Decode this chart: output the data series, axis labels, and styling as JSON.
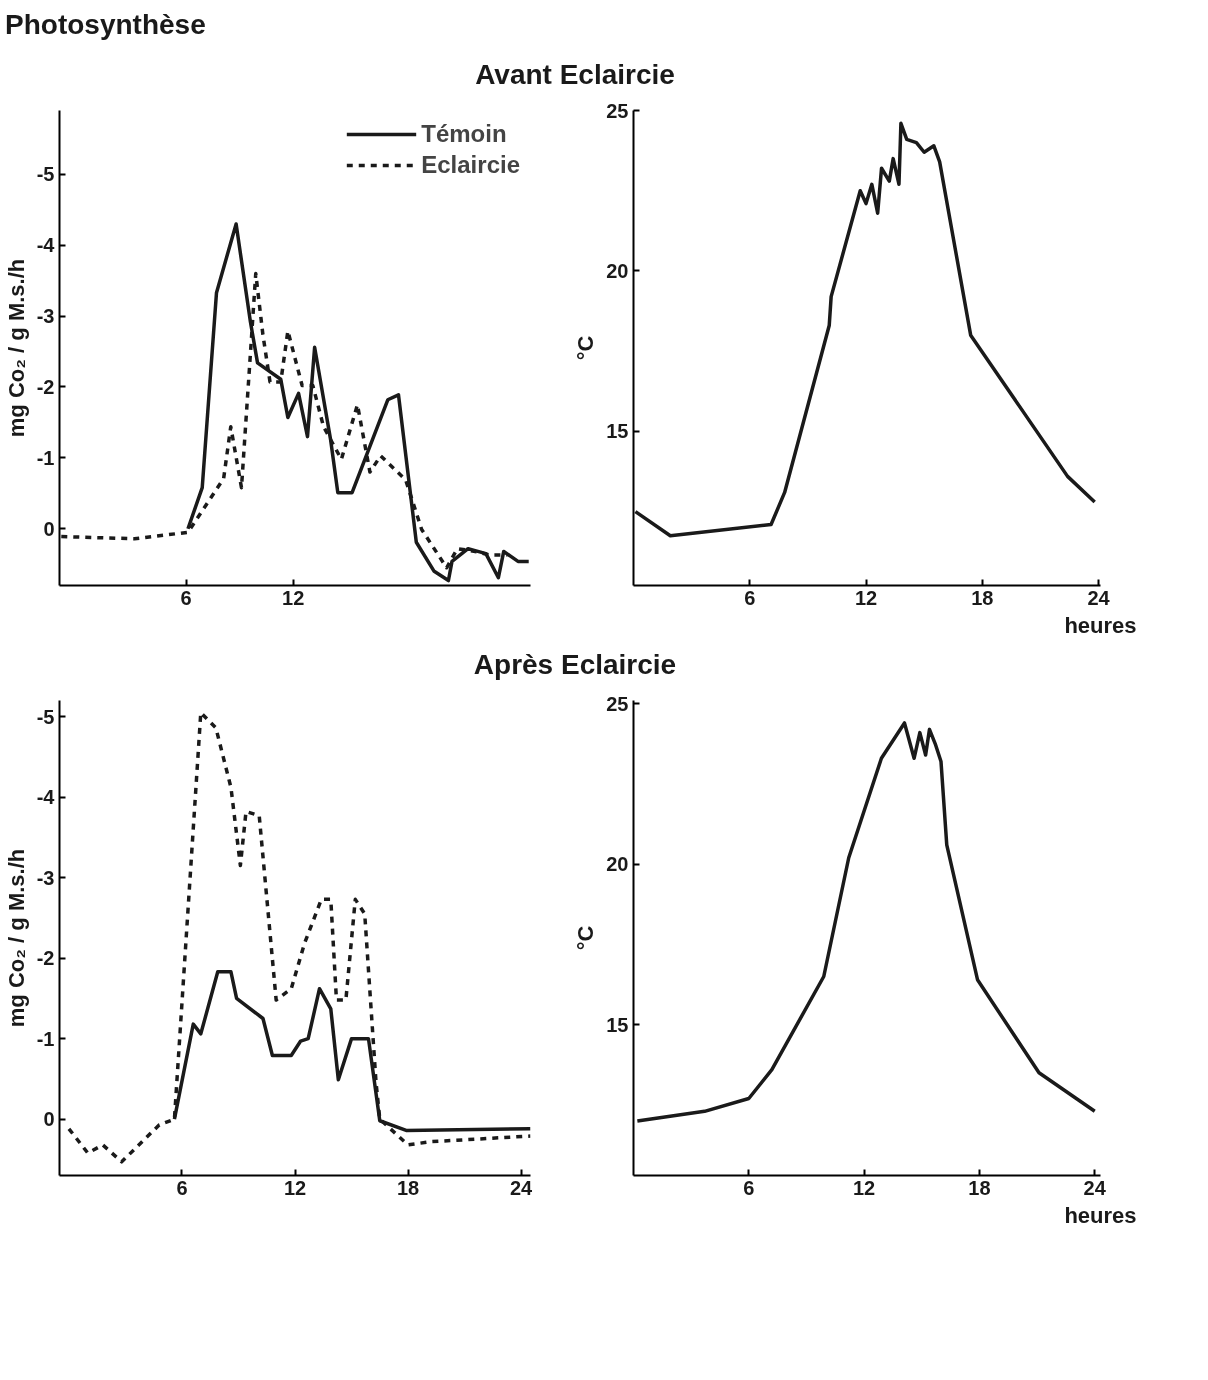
{
  "chart_data": [
    {
      "type": "line",
      "title": "Photosynthèse",
      "subtitle": "Avant Eclaircie",
      "ylabel": "mg Co₂ / g M.s./h",
      "xlim": [
        -1.1,
        25.3
      ],
      "xticks": [
        6,
        12
      ],
      "ylim": [
        0.8,
        -5.9
      ],
      "yticks": [
        -5,
        -4,
        -3,
        -2,
        -1,
        0
      ],
      "grid": false,
      "legend": "top right",
      "series": [
        {
          "name": "Témoin",
          "color": "#1a1a1a",
          "line_style": "solid",
          "x": [
            6.1,
            6.9,
            7.7,
            8.8,
            9.6,
            10.0,
            11.3,
            11.7,
            12.3,
            12.8,
            13.2,
            14.1,
            14.5,
            15.3,
            17.3,
            17.9,
            18.9,
            19.9,
            20.7,
            20.9,
            21.8,
            22.8,
            23.5,
            23.8,
            24.6,
            25.2
          ],
          "values": [
            0,
            -0.58,
            -3.33,
            -4.3,
            -2.92,
            -2.34,
            -2.11,
            -1.57,
            -1.91,
            -1.3,
            -2.56,
            -1.25,
            -0.51,
            -0.51,
            -1.82,
            -1.89,
            0.19,
            0.6,
            0.73,
            0.46,
            0.28,
            0.35,
            0.69,
            0.32,
            0.46,
            0.46
          ]
        },
        {
          "name": "Eclaircie",
          "color": "#1a1a1a",
          "line_style": "dashed",
          "x": [
            -1.0,
            3.1,
            6.1,
            8.1,
            8.5,
            9.1,
            9.9,
            10.3,
            10.7,
            11.3,
            11.7,
            12.5,
            13.1,
            13.7,
            14.7,
            15.6,
            16.3,
            16.9,
            18.3,
            19.2,
            20.6,
            21.2,
            22.2,
            23.0,
            24.0
          ],
          "values": [
            0.11,
            0.14,
            0.05,
            -0.71,
            -1.44,
            -0.58,
            -3.6,
            -2.74,
            -2.07,
            -2.07,
            -2.79,
            -2.02,
            -2.02,
            -1.44,
            -0.98,
            -1.75,
            -0.8,
            -1.03,
            -0.69,
            0.01,
            0.55,
            0.28,
            0.32,
            0.37,
            0.37
          ]
        }
      ]
    },
    {
      "type": "line",
      "ylabel": "°C",
      "xlabel": "heures",
      "xlim": [
        0,
        24.1
      ],
      "xticks": [
        6,
        12,
        18,
        24
      ],
      "ylim": [
        10.2,
        25
      ],
      "yticks": [
        15,
        20,
        25
      ],
      "grid": false,
      "series": [
        {
          "color": "#1a1a1a",
          "line_style": "solid",
          "x": [
            0.1,
            1.9,
            7.1,
            7.8,
            10.1,
            10.2,
            11.7,
            12.0,
            12.3,
            12.6,
            12.8,
            13.2,
            13.4,
            13.7,
            13.8,
            14.1,
            14.6,
            15.0,
            15.5,
            15.8,
            17.4,
            22.4,
            23.8
          ],
          "values": [
            12.5,
            11.75,
            12.1,
            13.1,
            18.3,
            19.2,
            22.5,
            22.1,
            22.7,
            21.8,
            23.2,
            22.8,
            23.5,
            22.7,
            24.6,
            24.1,
            24.0,
            23.7,
            23.9,
            23.4,
            18.0,
            13.6,
            12.8
          ]
        }
      ]
    },
    {
      "type": "line",
      "subtitle": "Après Eclaircie",
      "ylabel": "mg Co₂ / g M.s./h",
      "xlim": [
        -0.5,
        24.5
      ],
      "xticks": [
        6,
        12,
        18,
        24
      ],
      "ylim": [
        0.7,
        -5.2
      ],
      "yticks": [
        -5,
        -4,
        -3,
        -2,
        -1,
        0
      ],
      "grid": false,
      "series": [
        {
          "color": "#1a1a1a",
          "line_style": "solid",
          "x": [
            5.6,
            6.6,
            7.0,
            7.9,
            8.6,
            8.9,
            10.3,
            10.8,
            11.8,
            12.3,
            12.7,
            13.3,
            13.9,
            14.3,
            15.0,
            15.9,
            16.5,
            17.9,
            24.5
          ],
          "values": [
            0,
            -1.18,
            -1.06,
            -1.83,
            -1.83,
            -1.5,
            -1.25,
            -0.79,
            -0.79,
            -0.97,
            -1.0,
            -1.62,
            -1.37,
            -0.49,
            -1.0,
            -1.0,
            0.02,
            0.14,
            0.12
          ]
        },
        {
          "color": "#1a1a1a",
          "line_style": "dashed",
          "x": [
            0,
            1.0,
            1.8,
            2.8,
            4.8,
            5.6,
            7.0,
            7.8,
            8.6,
            9.1,
            9.4,
            10.1,
            11.0,
            11.8,
            12.5,
            13.4,
            13.9,
            14.2,
            14.7,
            15.2,
            15.7,
            16.3,
            16.5,
            18.0,
            19.2,
            24.5
          ],
          "values": [
            0.12,
            0.42,
            0.32,
            0.53,
            0.07,
            0,
            -5.05,
            -4.86,
            -4.12,
            -3.15,
            -3.82,
            -3.77,
            -1.48,
            -1.62,
            -2.18,
            -2.73,
            -2.73,
            -1.48,
            -1.48,
            -2.73,
            -2.55,
            -0.46,
            0,
            0.32,
            0.28,
            0.21
          ]
        }
      ]
    },
    {
      "type": "line",
      "ylabel": "°C",
      "xlabel": "heures",
      "xlim": [
        0,
        24.3
      ],
      "xticks": [
        6,
        12,
        18,
        24
      ],
      "ylim": [
        10.3,
        25.1
      ],
      "yticks": [
        15,
        20,
        25
      ],
      "grid": false,
      "series": [
        {
          "color": "#1a1a1a",
          "line_style": "solid",
          "x": [
            0.2,
            3.7,
            6.0,
            7.2,
            9.9,
            11.2,
            12.9,
            14.1,
            14.6,
            14.9,
            15.2,
            15.4,
            15.7,
            16.0,
            16.3,
            17.9,
            21.1,
            24.0
          ],
          "values": [
            12.0,
            12.3,
            12.7,
            13.6,
            16.5,
            20.2,
            23.3,
            24.4,
            23.3,
            24.1,
            23.4,
            24.2,
            23.75,
            23.2,
            20.6,
            16.4,
            13.5,
            12.3
          ]
        }
      ]
    }
  ]
}
